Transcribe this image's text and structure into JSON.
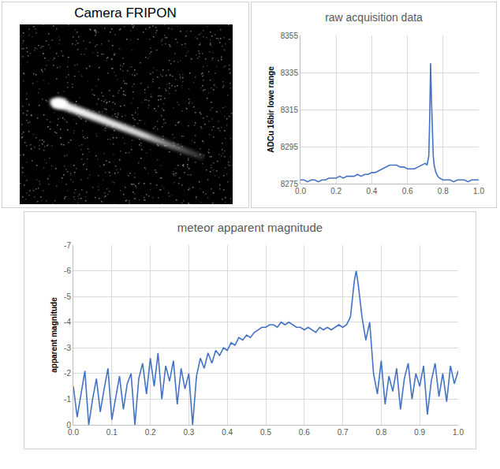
{
  "camera": {
    "title": "Camera FRIPON"
  },
  "chart_data": [
    {
      "type": "line",
      "title": "raw acquisition data",
      "y_label": "ADCu 16bir lowe range",
      "x": [
        0.0,
        0.02,
        0.04,
        0.06,
        0.08,
        0.1,
        0.12,
        0.14,
        0.16,
        0.18,
        0.2,
        0.22,
        0.24,
        0.26,
        0.28,
        0.3,
        0.32,
        0.34,
        0.36,
        0.38,
        0.4,
        0.42,
        0.44,
        0.46,
        0.48,
        0.5,
        0.52,
        0.54,
        0.56,
        0.58,
        0.6,
        0.62,
        0.64,
        0.66,
        0.68,
        0.7,
        0.71,
        0.72,
        0.725,
        0.73,
        0.735,
        0.74,
        0.745,
        0.75,
        0.76,
        0.77,
        0.78,
        0.8,
        0.82,
        0.84,
        0.86,
        0.88,
        0.9,
        0.92,
        0.94,
        0.96,
        0.98,
        1.0
      ],
      "values": [
        8277,
        8277,
        8276,
        8277,
        8277,
        8276,
        8277,
        8277,
        8278,
        8278,
        8278,
        8279,
        8278,
        8279,
        8279,
        8279,
        8280,
        8279,
        8280,
        8280,
        8281,
        8281,
        8282,
        8283,
        8284,
        8285,
        8285,
        8285,
        8284,
        8284,
        8283,
        8283,
        8283,
        8284,
        8285,
        8286,
        8285,
        8290,
        8310,
        8340,
        8320,
        8300,
        8290,
        8285,
        8281,
        8279,
        8278,
        8277,
        8277,
        8277,
        8276,
        8277,
        8277,
        8277,
        8276,
        8277,
        8277,
        8277
      ],
      "color": "#4472c4",
      "xlim": [
        0,
        1
      ],
      "xticks": [
        {
          "value": 0,
          "label": "0.0"
        },
        0.2,
        0.4,
        0.6,
        0.8,
        {
          "value": 1,
          "label": "1.0"
        }
      ],
      "ylim": [
        8275,
        8355
      ],
      "yticks": [
        8275,
        8295,
        8315,
        8335,
        8355
      ],
      "grid": true
    },
    {
      "type": "line",
      "title": "meteor apparent magnitude",
      "y_label": "apparent magnitude",
      "x": [
        0.0,
        0.01,
        0.02,
        0.03,
        0.04,
        0.05,
        0.06,
        0.07,
        0.08,
        0.09,
        0.1,
        0.11,
        0.12,
        0.13,
        0.14,
        0.15,
        0.16,
        0.17,
        0.18,
        0.19,
        0.2,
        0.21,
        0.22,
        0.23,
        0.24,
        0.25,
        0.26,
        0.27,
        0.28,
        0.29,
        0.3,
        0.31,
        0.32,
        0.33,
        0.34,
        0.35,
        0.36,
        0.37,
        0.38,
        0.39,
        0.4,
        0.41,
        0.42,
        0.43,
        0.44,
        0.45,
        0.46,
        0.47,
        0.48,
        0.49,
        0.5,
        0.51,
        0.52,
        0.53,
        0.54,
        0.55,
        0.56,
        0.57,
        0.58,
        0.59,
        0.6,
        0.61,
        0.62,
        0.63,
        0.64,
        0.65,
        0.66,
        0.67,
        0.68,
        0.69,
        0.7,
        0.71,
        0.72,
        0.73,
        0.735,
        0.74,
        0.75,
        0.76,
        0.77,
        0.78,
        0.79,
        0.8,
        0.81,
        0.82,
        0.83,
        0.84,
        0.85,
        0.86,
        0.87,
        0.88,
        0.89,
        0.9,
        0.91,
        0.92,
        0.93,
        0.94,
        0.95,
        0.96,
        0.97,
        0.98,
        0.99,
        1.0
      ],
      "values": [
        -1.5,
        -0.3,
        -1.2,
        -2.1,
        0,
        -1.0,
        -1.8,
        -0.5,
        -1.4,
        -2.2,
        -0.2,
        -1.1,
        -1.9,
        -0.6,
        -1.6,
        -2.0,
        0,
        -1.8,
        -2.4,
        -1.2,
        -2.6,
        -1.5,
        -2.8,
        -1.0,
        -2.3,
        -1.7,
        -2.5,
        -0.8,
        -2.2,
        -1.4,
        -2.0,
        0,
        -1.9,
        -2.6,
        -2.2,
        -2.8,
        -2.4,
        -2.9,
        -2.7,
        -3.0,
        -2.9,
        -3.2,
        -3.1,
        -3.4,
        -3.3,
        -3.5,
        -3.4,
        -3.6,
        -3.7,
        -3.8,
        -3.8,
        -3.9,
        -3.9,
        -3.8,
        -4.0,
        -3.9,
        -4.0,
        -3.9,
        -3.8,
        -3.8,
        -3.7,
        -3.8,
        -3.7,
        -3.6,
        -3.8,
        -3.7,
        -3.8,
        -3.7,
        -3.8,
        -3.9,
        -3.8,
        -3.9,
        -4.2,
        -5.6,
        -6.0,
        -5.5,
        -4.2,
        -3.3,
        -4.0,
        -2.0,
        -1.2,
        -2.5,
        -0.8,
        -1.9,
        -1.3,
        -2.2,
        -0.6,
        -1.8,
        -2.4,
        -1.0,
        -2.0,
        -1.5,
        -2.3,
        -0.4,
        -1.7,
        -2.4,
        -1.1,
        -2.0,
        -0.9,
        -2.3,
        -1.6,
        -2.1
      ],
      "color": "#4472c4",
      "xlim": [
        0,
        1
      ],
      "xticks": [
        {
          "value": 0,
          "label": "0.0"
        },
        0.1,
        0.2,
        0.3,
        0.4,
        0.5,
        0.6,
        0.7,
        0.8,
        0.9,
        {
          "value": 1,
          "label": "1.0"
        }
      ],
      "ylim": [
        0,
        -7
      ],
      "yticks": [
        -7,
        -6,
        -5,
        -4,
        -3,
        -2,
        -1,
        0
      ],
      "grid": true
    }
  ]
}
